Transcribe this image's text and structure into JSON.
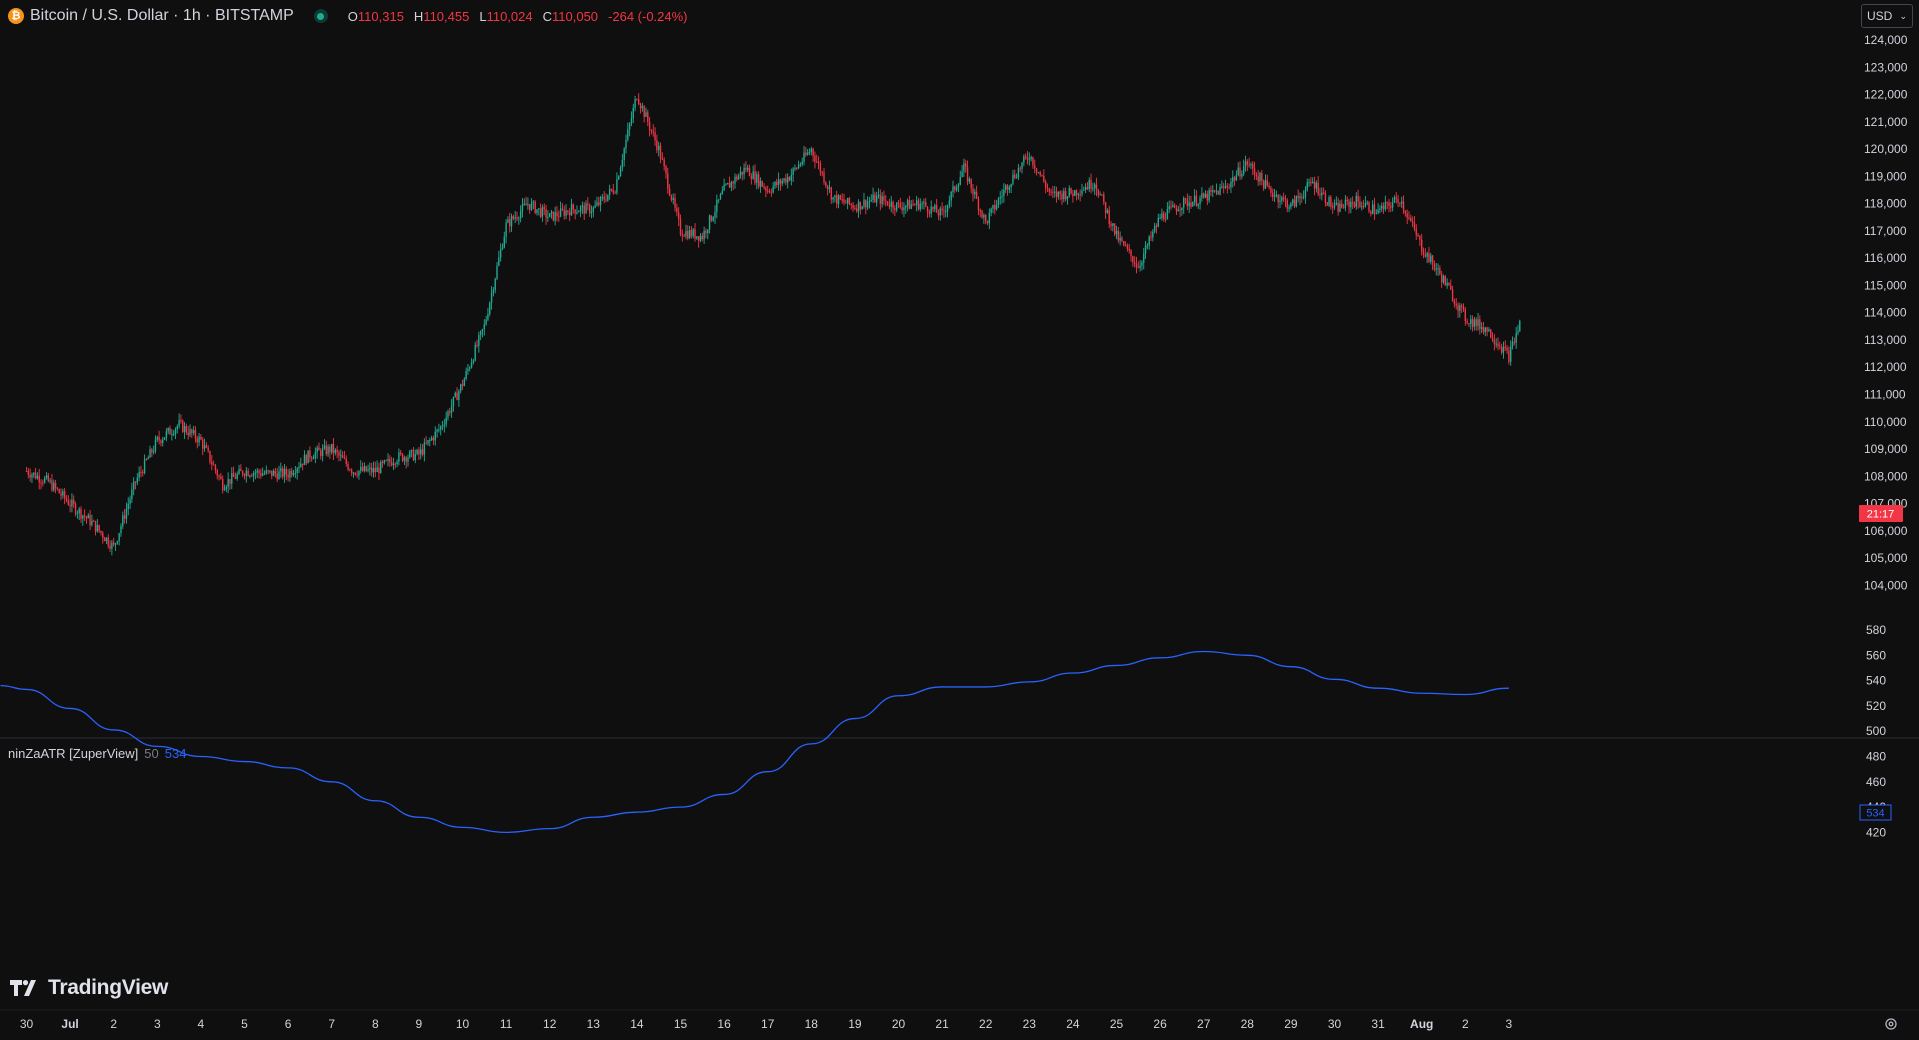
{
  "header": {
    "symbol_title": "Bitcoin / U.S. Dollar · 1h · BITSTAMP",
    "coin_icon": "bitcoin-icon",
    "ohlc": {
      "o_label": "O",
      "o_value": "110,315",
      "h_label": "H",
      "h_value": "110,455",
      "l_label": "L",
      "l_value": "110,024",
      "c_label": "C",
      "c_value": "110,050",
      "change": "-264 (-0.24%)"
    }
  },
  "currency_selector": {
    "value": "USD"
  },
  "price_axis": {
    "ticks": [
      "124,000",
      "123,000",
      "122,000",
      "121,000",
      "120,000",
      "119,000",
      "118,000",
      "117,000",
      "116,000",
      "115,000",
      "114,000",
      "113,000",
      "112,000",
      "111,000",
      "110,000",
      "109,000",
      "108,000",
      "107,000",
      "106,000",
      "105,000",
      "104,000"
    ],
    "countdown_label": "21:17"
  },
  "indicator": {
    "name": "ninZaATR [ZuperView]",
    "param": "50",
    "value": "534",
    "axis_ticks": [
      "580",
      "560",
      "540",
      "520",
      "500",
      "480",
      "460",
      "440",
      "420"
    ]
  },
  "time_axis": {
    "labels": [
      "30",
      "Jul",
      "2",
      "3",
      "4",
      "5",
      "6",
      "7",
      "8",
      "9",
      "10",
      "11",
      "12",
      "13",
      "14",
      "15",
      "16",
      "17",
      "18",
      "19",
      "20",
      "21",
      "22",
      "23",
      "24",
      "25",
      "26",
      "27",
      "28",
      "29",
      "30",
      "31",
      "Aug",
      "2",
      "3"
    ]
  },
  "branding": {
    "logo_text": "TradingView"
  },
  "colors": {
    "background": "#0f0f0f",
    "up": "#22ab94",
    "down": "#f23645",
    "atr_line": "#2962ff",
    "axis_text": "#d1d4dc"
  },
  "chart_data": [
    {
      "type": "candlestick",
      "title": "Bitcoin / U.S. Dollar · 1h · BITSTAMP",
      "ylim": [
        103700,
        124600
      ],
      "x": [
        "Jun 30",
        "Jul 1",
        "Jul 2",
        "Jul 3",
        "Jul 4",
        "Jul 5",
        "Jul 6",
        "Jul 7",
        "Jul 8",
        "Jul 9",
        "Jul 10",
        "Jul 11",
        "Jul 12",
        "Jul 13",
        "Jul 14",
        "Jul 15",
        "Jul 16",
        "Jul 17",
        "Jul 18",
        "Jul 19",
        "Jul 20",
        "Jul 21",
        "Jul 22",
        "Jul 23",
        "Jul 24",
        "Jul 25",
        "Jul 26",
        "Jul 27",
        "Jul 28",
        "Jul 29",
        "Jul 30",
        "Jul 31",
        "Aug 1",
        "Aug 2",
        "Aug 3"
      ],
      "close_path": [
        [
          "Jun 30",
          108200
        ],
        [
          "Jun 30 12h",
          107800
        ],
        [
          "Jul 1",
          107000
        ],
        [
          "Jul 1 12h",
          106300
        ],
        [
          "Jul 2",
          105400
        ],
        [
          "Jul 2 12h",
          107800
        ],
        [
          "Jul 3",
          109300
        ],
        [
          "Jul 3 12h",
          109900
        ],
        [
          "Jul 4",
          109300
        ],
        [
          "Jul 4 12h",
          107700
        ],
        [
          "Jul 5",
          108200
        ],
        [
          "Jul 5 12h",
          108100
        ],
        [
          "Jul 6",
          108100
        ],
        [
          "Jul 6 12h",
          108800
        ],
        [
          "Jul 7",
          109000
        ],
        [
          "Jul 7 12h",
          108200
        ],
        [
          "Jul 8",
          108200
        ],
        [
          "Jul 8 12h",
          108700
        ],
        [
          "Jul 9",
          108800
        ],
        [
          "Jul 9 12h",
          109800
        ],
        [
          "Jul 10",
          111400
        ],
        [
          "Jul 10 12h",
          113500
        ],
        [
          "Jul 11",
          117200
        ],
        [
          "Jul 11 12h",
          118000
        ],
        [
          "Jul 12",
          117500
        ],
        [
          "Jul 12 12h",
          117800
        ],
        [
          "Jul 13",
          117800
        ],
        [
          "Jul 13 12h",
          118600
        ],
        [
          "Jul 14",
          122000
        ],
        [
          "Jul 14 12h",
          120000
        ],
        [
          "Jul 15",
          117000
        ],
        [
          "Jul 15 12h",
          116800
        ],
        [
          "Jul 16",
          118500
        ],
        [
          "Jul 16 12h",
          119300
        ],
        [
          "Jul 17",
          118500
        ],
        [
          "Jul 17 12h",
          119000
        ],
        [
          "Jul 18",
          120000
        ],
        [
          "Jul 18 12h",
          118200
        ],
        [
          "Jul 19",
          117900
        ],
        [
          "Jul 19 12h",
          118200
        ],
        [
          "Jul 20",
          117900
        ],
        [
          "Jul 20 12h",
          118000
        ],
        [
          "Jul 21",
          117600
        ],
        [
          "Jul 21 12h",
          119300
        ],
        [
          "Jul 22",
          117300
        ],
        [
          "Jul 22 12h",
          118700
        ],
        [
          "Jul 23",
          119800
        ],
        [
          "Jul 23 12h",
          118300
        ],
        [
          "Jul 24",
          118400
        ],
        [
          "Jul 24 12h",
          118800
        ],
        [
          "Jul 25",
          116800
        ],
        [
          "Jul 25 12h",
          115700
        ],
        [
          "Jul 26",
          117500
        ],
        [
          "Jul 26 12h",
          118000
        ],
        [
          "Jul 27",
          118200
        ],
        [
          "Jul 27 12h",
          118600
        ],
        [
          "Jul 28",
          119500
        ],
        [
          "Jul 28 12h",
          118500
        ],
        [
          "Jul 29",
          117900
        ],
        [
          "Jul 29 12h",
          118800
        ],
        [
          "Jul 30",
          117800
        ],
        [
          "Jul 30 12h",
          118100
        ],
        [
          "Jul 31",
          117700
        ],
        [
          "Jul 31 12h",
          118200
        ],
        [
          "Aug 1",
          116400
        ],
        [
          "Aug 1 12h",
          115200
        ],
        [
          "Aug 2",
          113800
        ],
        [
          "Aug 2 12h",
          113400
        ],
        [
          "Aug 3",
          112400
        ],
        [
          "Aug 3 6h",
          113600
        ]
      ]
    },
    {
      "type": "line",
      "series": [
        {
          "name": "ninZaATR [ZuperView]",
          "points": [
            [
              "Jun 30",
              533
            ],
            [
              "Jul 1",
              518
            ],
            [
              "Jul 2",
              501
            ],
            [
              "Jul 3",
              488
            ],
            [
              "Jul 4",
              480
            ],
            [
              "Jul 5",
              476
            ],
            [
              "Jul 6",
              471
            ],
            [
              "Jul 7",
              460
            ],
            [
              "Jul 8",
              445
            ],
            [
              "Jul 9",
              432
            ],
            [
              "Jul 10",
              424
            ],
            [
              "Jul 11",
              420
            ],
            [
              "Jul 12",
              423
            ],
            [
              "Jul 13",
              432
            ],
            [
              "Jul 14",
              436
            ],
            [
              "Jul 15",
              440
            ],
            [
              "Jul 16",
              450
            ],
            [
              "Jul 17",
              468
            ],
            [
              "Jul 18",
              490
            ],
            [
              "Jul 19",
              510
            ],
            [
              "Jul 20",
              528
            ],
            [
              "Jul 21",
              535
            ],
            [
              "Jul 22",
              535
            ],
            [
              "Jul 23",
              539
            ],
            [
              "Jul 24",
              546
            ],
            [
              "Jul 25",
              552
            ],
            [
              "Jul 26",
              558
            ],
            [
              "Jul 27",
              563
            ],
            [
              "Jul 28",
              560
            ],
            [
              "Jul 29",
              551
            ],
            [
              "Jul 30",
              541
            ],
            [
              "Jul 31",
              534
            ],
            [
              "Aug 1",
              530
            ],
            [
              "Aug 2",
              529
            ],
            [
              "Aug 3",
              534
            ]
          ]
        }
      ],
      "ylim": [
        413,
        583
      ]
    }
  ]
}
